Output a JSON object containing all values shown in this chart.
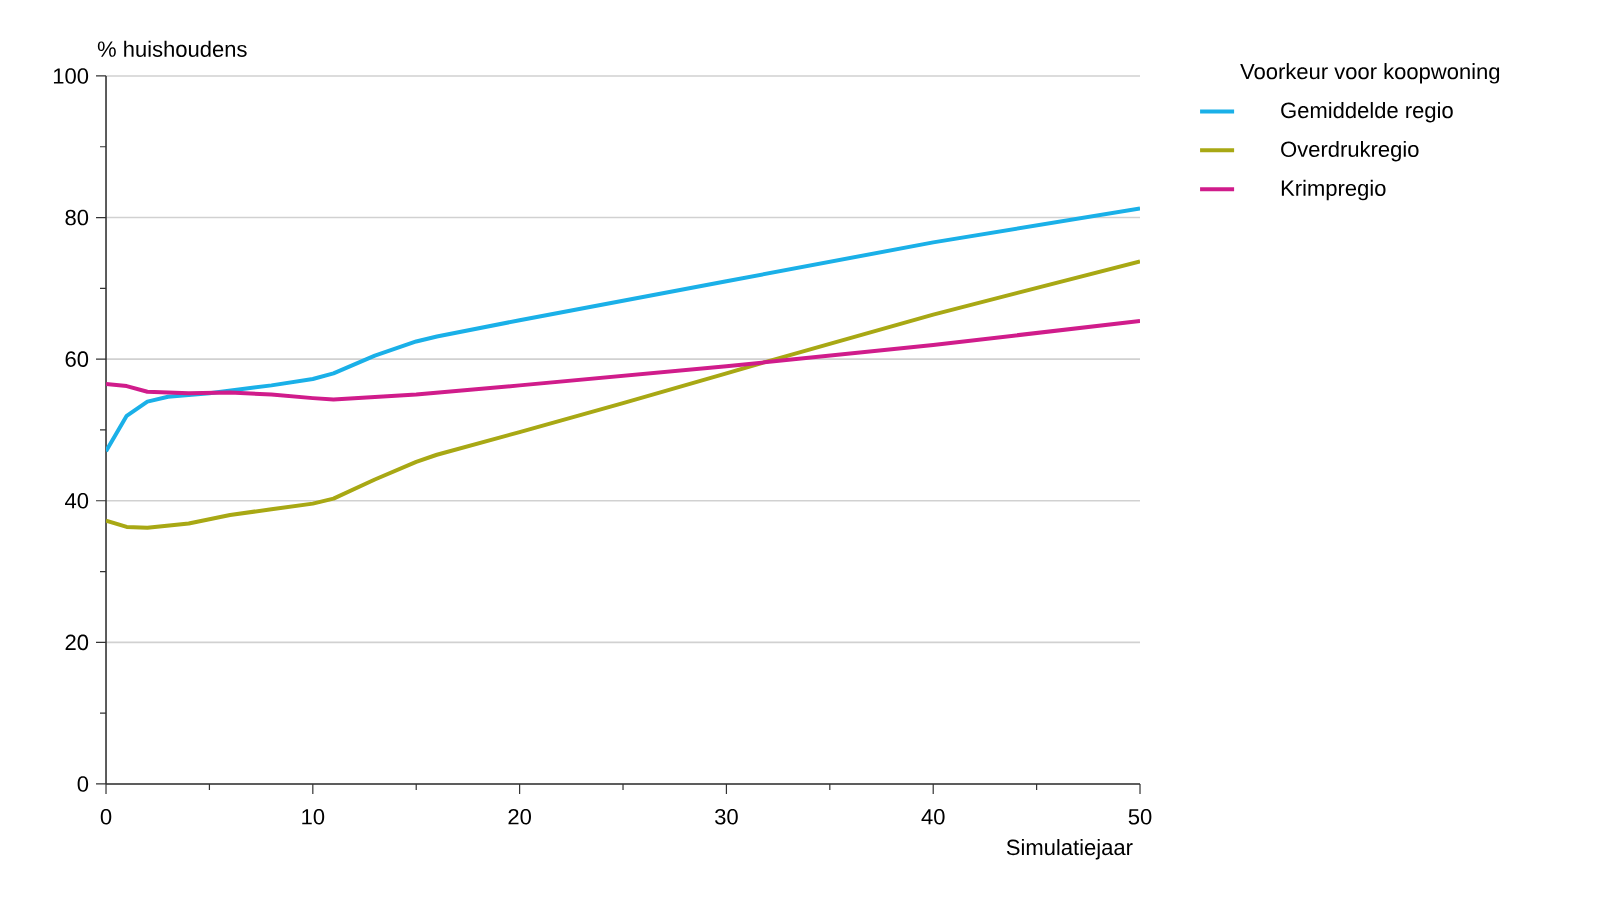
{
  "chart_data": {
    "type": "line",
    "xlabel": "Simulatiejaar",
    "ylabel": "% huishoudens",
    "legend_title": "Voorkeur voor koopwoning",
    "xlim": [
      0,
      50
    ],
    "xticks": [
      0,
      10,
      20,
      30,
      40,
      50
    ],
    "ylim": [
      0,
      100
    ],
    "yticks": [
      0,
      20,
      40,
      60,
      80,
      100
    ],
    "grid": "y",
    "legend": "top right",
    "marker": "none",
    "line_style": "solid",
    "series": [
      {
        "name": "Gemiddelde regio",
        "color": "#1ab0e8",
        "x": [
          0,
          1,
          2,
          3,
          5,
          8,
          10,
          11,
          13,
          15,
          16,
          20,
          30,
          40,
          50
        ],
        "values": [
          47,
          52,
          54,
          54.7,
          55.2,
          56.3,
          57.2,
          58,
          60.5,
          62.5,
          63.2,
          65.5,
          71,
          76.5,
          81.3
        ]
      },
      {
        "name": "Overdrukregio",
        "color": "#a8a814",
        "x": [
          0,
          1,
          2,
          4,
          6,
          8,
          10,
          11,
          13,
          15,
          16,
          20,
          25,
          30,
          32,
          40,
          50
        ],
        "values": [
          37.2,
          36.3,
          36.2,
          36.8,
          38,
          38.8,
          39.6,
          40.3,
          43,
          45.5,
          46.5,
          49.7,
          53.8,
          58,
          59.7,
          66.3,
          73.8
        ]
      },
      {
        "name": "Krimpregio",
        "color": "#d01c8b",
        "x": [
          0,
          1,
          2,
          4,
          6,
          8,
          10,
          11,
          15,
          20,
          30,
          40,
          50
        ],
        "values": [
          56.5,
          56.2,
          55.4,
          55.2,
          55.3,
          55,
          54.5,
          54.3,
          55,
          56.3,
          59,
          62,
          65.4
        ]
      }
    ]
  }
}
